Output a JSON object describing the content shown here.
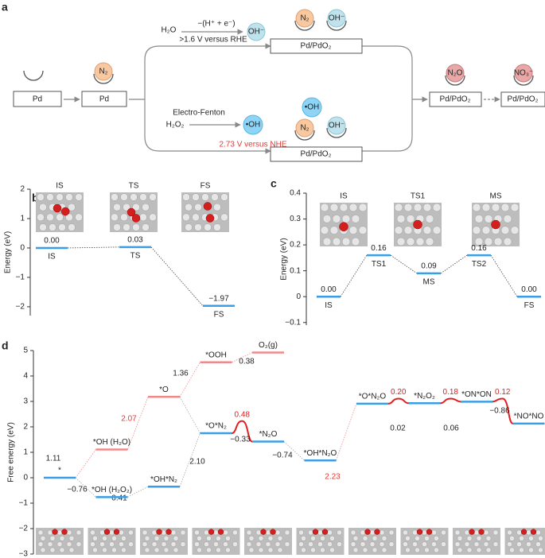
{
  "panel_a": {
    "label": "a",
    "pd1": "Pd",
    "pd2": "Pd",
    "n2_ads": "N₂",
    "h2o": "H₂O",
    "step_top": "−(H⁺ + e⁻)",
    "potential_top": ">1.6 V versus RHE",
    "oh_free": "OH⁻",
    "top_n2": "N₂",
    "top_oh": "OH⁻",
    "top_box": "Pd/PdO₂",
    "fenton": "Electro-Fenton",
    "h2o2": "H₂O₂",
    "oh_radical_free": "•OH",
    "bot_oh_radical": "•OH",
    "bot_n2": "N₂",
    "bot_oh": "OH⁻",
    "potential_bottom": "2.73 V versus NHE",
    "bot_box": "Pd/PdO₂",
    "n2o": "N₂O",
    "box_n2o": "Pd/PdO₂",
    "no3": "NO₃⁻",
    "box_no3": "Pd/PdO₂"
  },
  "chart_data": [
    {
      "type": "energy",
      "label": "b",
      "ylabel": "Energy (eV)",
      "images": [
        "IS",
        "TS",
        "FS"
      ],
      "categories": [
        "IS",
        "TS",
        "FS"
      ],
      "values": [
        0.0,
        0.03,
        -1.97
      ],
      "value_labels": [
        "0.00",
        "0.03",
        "−1.97"
      ],
      "color": "#3a9ee4",
      "ylim": [
        -2.3,
        2
      ],
      "yticks": [
        2,
        1,
        0,
        {
          "value": -1,
          "label": "−1"
        },
        {
          "value": -2,
          "label": "−2"
        }
      ]
    },
    {
      "type": "energy",
      "label": "c",
      "ylabel": "Energy (eV)",
      "images": [
        "IS",
        "TS1",
        "MS"
      ],
      "categories": [
        "IS",
        "TS1",
        "MS",
        "TS2",
        "FS"
      ],
      "values": [
        0.0,
        0.16,
        0.09,
        0.16,
        0.0
      ],
      "value_labels": [
        "0.00",
        "0.16",
        "0.09",
        "0.16",
        "0.00"
      ],
      "color": "#3a9ee4",
      "ylim": [
        -0.11,
        0.4
      ],
      "yticks": [
        0.4,
        0.3,
        0.2,
        0.1,
        0,
        {
          "value": -0.1,
          "label": "−0.1"
        }
      ]
    },
    {
      "type": "energy",
      "label": "d",
      "ylabel": "Free energy (eV)",
      "categories": [
        "*",
        "*OH (H₂O)",
        "*O",
        "*OOH",
        "O₂(g)",
        "*OH (H₂O₂)",
        "*OH*N₂",
        "*O*N₂",
        "*N₂O",
        "*OH*N₂O",
        "*O*N₂O",
        "*N₂O₂",
        "*ON*ON",
        "*NO*NO"
      ],
      "values": [
        0,
        1.11,
        3.18,
        4.54,
        4.92,
        -0.76,
        -0.35,
        1.75,
        1.42,
        0.68,
        2.91,
        2.93,
        2.99,
        2.13
      ],
      "colors": [
        "#3a9ee4",
        "#f08a8a",
        "#f08a8a",
        "#f08a8a",
        "#f08a8a",
        "#3a9ee4",
        "#3a9ee4",
        "#3a9ee4",
        "#3a9ee4",
        "#3a9ee4",
        "#3a9ee4",
        "#3a9ee4",
        "#3a9ee4",
        "#3a9ee4"
      ],
      "barriers": [
        0.48,
        0.2,
        0.18,
        0.12
      ],
      "barrier_labels": [
        "0.48",
        "0.20",
        "0.18",
        "0.12"
      ],
      "barrier_color": "#e02020",
      "steps": [
        {
          "text": "1.11",
          "color": "#222222"
        },
        {
          "text": "−0.76",
          "color": "#222222"
        },
        {
          "text": "2.07",
          "color": "#e53935"
        },
        {
          "text": "0.41",
          "color": "#222222"
        },
        {
          "text": "1.36",
          "color": "#222222"
        },
        {
          "text": "0.38",
          "color": "#222222"
        },
        {
          "text": "2.10",
          "color": "#222222"
        },
        {
          "text": "−0.33",
          "color": "#222222"
        },
        {
          "text": "−0.74",
          "color": "#222222"
        },
        {
          "text": "2.23",
          "color": "#e53935"
        },
        {
          "text": "0.02",
          "color": "#222222"
        },
        {
          "text": "0.06",
          "color": "#222222"
        },
        {
          "text": "−0.86",
          "color": "#222222"
        }
      ],
      "ylim": [
        -3,
        5
      ],
      "yticks": [
        5,
        4,
        3,
        2,
        1,
        0,
        {
          "value": -1,
          "label": "−1"
        },
        {
          "value": -2,
          "label": "−2"
        },
        {
          "value": -3,
          "label": "−3"
        }
      ]
    }
  ]
}
